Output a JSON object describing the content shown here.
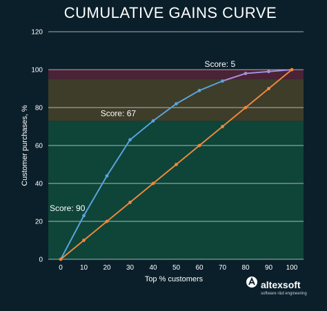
{
  "chart_data": {
    "type": "line",
    "title": "CUMULATIVE GAINS CURVE",
    "xlabel": "Top % customers",
    "ylabel": "Customer purchases, %",
    "xlim": [
      0,
      100
    ],
    "ylim": [
      0,
      120
    ],
    "x_ticks": [
      "0",
      "10",
      "20",
      "30",
      "40",
      "50",
      "60",
      "70",
      "80",
      "90",
      "100"
    ],
    "y_ticks": [
      "0",
      "20",
      "40",
      "60",
      "80",
      "100",
      "120"
    ],
    "grid": "horizontal",
    "bands": [
      {
        "from": 0,
        "to": 73,
        "color": "#0e4538"
      },
      {
        "from": 73,
        "to": 95,
        "color": "#3d3d2a"
      },
      {
        "from": 95,
        "to": 100,
        "color": "#4a2336"
      }
    ],
    "series": [
      {
        "color": "#5aa3dc",
        "highlight_color": "#a58fd8",
        "x": [
          0,
          10,
          20,
          30,
          40,
          50,
          60,
          70,
          80,
          90,
          100
        ],
        "values": [
          0,
          23,
          44,
          63,
          73,
          82,
          89,
          94,
          98,
          99,
          100
        ]
      },
      {
        "color": "#f0883e",
        "x": [
          0,
          10,
          20,
          30,
          40,
          50,
          60,
          70,
          80,
          90,
          100
        ],
        "values": [
          0,
          10,
          20,
          30,
          40,
          50,
          60,
          70,
          80,
          90,
          100
        ]
      }
    ],
    "annotations": [
      {
        "text": "Score: 90",
        "x": 0,
        "y": 27
      },
      {
        "text": "Score: 67",
        "x": 22,
        "y": 77
      },
      {
        "text": "Score: 5",
        "x": 67,
        "y": 103
      }
    ]
  },
  "brand": {
    "name": "altexsoft",
    "tagline": "software r&d engineering",
    "logo_icon": "altexsoft-logo-icon"
  },
  "colors": {
    "background": "#0b1f2a",
    "grid": "#ffffff",
    "text": "#ffffff"
  }
}
